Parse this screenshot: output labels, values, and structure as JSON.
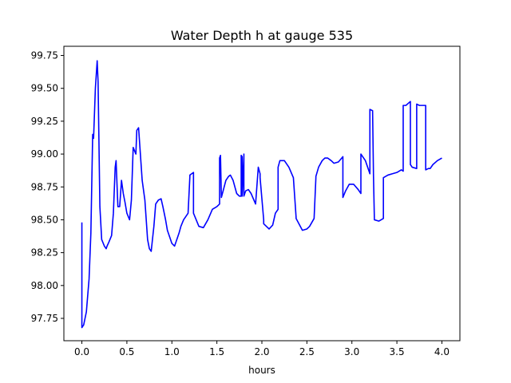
{
  "chart_data": {
    "type": "line",
    "title": "Water Depth h at gauge 535",
    "xlabel": "hours",
    "ylabel": "",
    "xlim": [
      -0.2,
      4.2
    ],
    "ylim": [
      97.58,
      99.82
    ],
    "xticks": [
      0.0,
      0.5,
      1.0,
      1.5,
      2.0,
      2.5,
      3.0,
      3.5,
      4.0
    ],
    "xtick_labels": [
      "0.0",
      "0.5",
      "1.0",
      "1.5",
      "2.0",
      "2.5",
      "3.0",
      "3.5",
      "4.0"
    ],
    "yticks": [
      97.75,
      98.0,
      98.25,
      98.5,
      98.75,
      99.0,
      99.25,
      99.5,
      99.75
    ],
    "ytick_labels": [
      "97.75",
      "98.00",
      "98.25",
      "98.50",
      "98.75",
      "99.00",
      "99.25",
      "99.50",
      "99.75"
    ],
    "grid": false,
    "legend": "none",
    "series": [
      {
        "color": "#0000ff",
        "x": [
          0.0,
          0.0,
          0.0,
          0.0,
          0.02,
          0.05,
          0.08,
          0.1,
          0.12,
          0.13,
          0.15,
          0.17,
          0.18,
          0.2,
          0.22,
          0.25,
          0.27,
          0.28,
          0.3,
          0.33,
          0.35,
          0.37,
          0.38,
          0.4,
          0.42,
          0.44,
          0.46,
          0.48,
          0.5,
          0.53,
          0.55,
          0.57,
          0.6,
          0.61,
          0.63,
          0.65,
          0.67,
          0.7,
          0.73,
          0.75,
          0.77,
          0.8,
          0.82,
          0.85,
          0.88,
          0.9,
          0.93,
          0.95,
          0.98,
          1.0,
          1.03,
          1.06,
          1.08,
          1.1,
          1.13,
          1.15,
          1.18,
          1.2,
          1.2,
          1.22,
          1.24,
          1.24,
          1.27,
          1.3,
          1.35,
          1.4,
          1.45,
          1.5,
          1.53,
          1.53,
          1.54,
          1.55,
          1.6,
          1.63,
          1.65,
          1.68,
          1.72,
          1.75,
          1.77,
          1.77,
          1.78,
          1.78,
          1.8,
          1.8,
          1.8,
          1.82,
          1.85,
          1.88,
          1.93,
          1.96,
          1.98,
          1.98,
          2.02,
          2.02,
          2.05,
          2.08,
          2.12,
          2.15,
          2.18,
          2.18,
          2.2,
          2.25,
          2.3,
          2.35,
          2.38,
          2.38,
          2.45,
          2.5,
          2.53,
          2.58,
          2.6,
          2.6,
          2.63,
          2.67,
          2.7,
          2.73,
          2.77,
          2.8,
          2.85,
          2.9,
          2.9,
          2.93,
          2.97,
          3.02,
          3.07,
          3.1,
          3.1,
          3.15,
          3.2,
          3.2,
          3.23,
          3.24,
          3.25,
          3.3,
          3.35,
          3.35,
          3.4,
          3.45,
          3.5,
          3.55,
          3.57,
          3.57,
          3.6,
          3.65,
          3.65,
          3.67,
          3.72,
          3.72,
          3.75,
          3.8,
          3.82,
          3.82,
          3.85,
          3.87,
          3.9,
          3.95,
          4.0
        ],
        "y": [
          98.48,
          98.0,
          97.9,
          97.68,
          97.7,
          97.8,
          98.05,
          98.4,
          99.15,
          99.12,
          99.5,
          99.71,
          99.55,
          98.6,
          98.35,
          98.3,
          98.28,
          98.3,
          98.33,
          98.38,
          98.55,
          98.9,
          98.95,
          98.6,
          98.6,
          98.8,
          98.7,
          98.63,
          98.55,
          98.5,
          98.65,
          99.05,
          99.0,
          99.18,
          99.2,
          99.0,
          98.8,
          98.65,
          98.35,
          98.28,
          98.26,
          98.45,
          98.62,
          98.65,
          98.66,
          98.6,
          98.5,
          98.42,
          98.36,
          98.32,
          98.3,
          98.36,
          98.4,
          98.45,
          98.5,
          98.52,
          98.55,
          98.83,
          98.84,
          98.85,
          98.86,
          98.55,
          98.5,
          98.45,
          98.44,
          98.5,
          98.58,
          98.6,
          98.62,
          98.97,
          98.99,
          98.67,
          98.8,
          98.83,
          98.84,
          98.8,
          98.7,
          98.68,
          98.68,
          98.99,
          98.98,
          98.68,
          98.99,
          99.0,
          98.68,
          98.72,
          98.73,
          98.7,
          98.62,
          98.9,
          98.85,
          98.82,
          98.5,
          98.47,
          98.45,
          98.43,
          98.46,
          98.55,
          98.58,
          98.9,
          98.95,
          98.95,
          98.9,
          98.82,
          98.52,
          98.51,
          98.42,
          98.43,
          98.45,
          98.51,
          98.82,
          98.83,
          98.9,
          98.95,
          98.97,
          98.97,
          98.95,
          98.93,
          98.94,
          98.98,
          98.67,
          98.72,
          98.77,
          98.77,
          98.73,
          98.7,
          99.0,
          98.95,
          98.85,
          99.34,
          99.33,
          98.83,
          98.5,
          98.49,
          98.51,
          98.82,
          98.84,
          98.85,
          98.86,
          98.88,
          98.87,
          99.37,
          99.37,
          99.4,
          98.92,
          98.9,
          98.89,
          99.38,
          99.37,
          99.37,
          99.37,
          98.88,
          98.89,
          98.89,
          98.92,
          98.95,
          98.97
        ]
      }
    ]
  }
}
